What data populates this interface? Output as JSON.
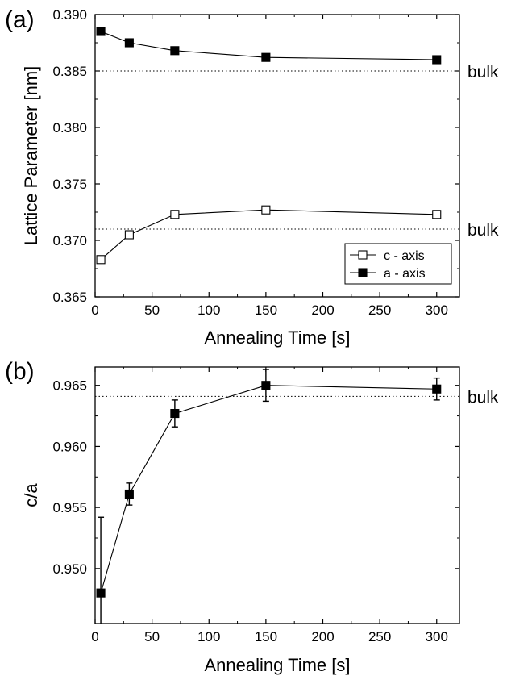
{
  "chart_data": [
    {
      "panel_label": "(a)",
      "type": "line",
      "xlabel": "Annealing Time [s]",
      "ylabel": "Lattice Parameter [nm]",
      "xlim": [
        0,
        320
      ],
      "ylim": [
        0.365,
        0.39
      ],
      "xticks": [
        0,
        50,
        100,
        150,
        200,
        250,
        300
      ],
      "yticks": [
        0.365,
        0.37,
        0.375,
        0.38,
        0.385,
        0.39
      ],
      "ytick_labels": [
        "0.365",
        "0.370",
        "0.375",
        "0.380",
        "0.385",
        "0.390"
      ],
      "x": [
        5,
        30,
        70,
        150,
        300
      ],
      "series": [
        {
          "name": "c - axis",
          "marker": "open-square",
          "values": [
            0.3683,
            0.3705,
            0.3723,
            0.3727,
            0.3723
          ]
        },
        {
          "name": "a - axis",
          "marker": "filled-square",
          "values": [
            0.3885,
            0.3875,
            0.3868,
            0.3862,
            0.386
          ]
        }
      ],
      "reference_lines": [
        {
          "label": "bulk",
          "y": 0.385
        },
        {
          "label": "bulk",
          "y": 0.371
        }
      ],
      "legend_position": "bottom-right",
      "grid": false
    },
    {
      "panel_label": "(b)",
      "type": "line",
      "xlabel": "Annealing Time [s]",
      "ylabel": "c/a",
      "xlim": [
        0,
        320
      ],
      "ylim": [
        0.9455,
        0.9665
      ],
      "xticks": [
        0,
        50,
        100,
        150,
        200,
        250,
        300
      ],
      "yticks": [
        0.95,
        0.955,
        0.96,
        0.965
      ],
      "ytick_labels": [
        "0.950",
        "0.955",
        "0.960",
        "0.965"
      ],
      "x": [
        5,
        30,
        70,
        150,
        300
      ],
      "series": [
        {
          "marker": "filled-square",
          "values": [
            0.948,
            0.9561,
            0.9627,
            0.965,
            0.9647
          ],
          "errors": [
            0.0062,
            0.0009,
            0.0011,
            0.0013,
            0.0009
          ]
        }
      ],
      "reference_lines": [
        {
          "label": "bulk",
          "y": 0.9641
        }
      ],
      "grid": false
    }
  ]
}
